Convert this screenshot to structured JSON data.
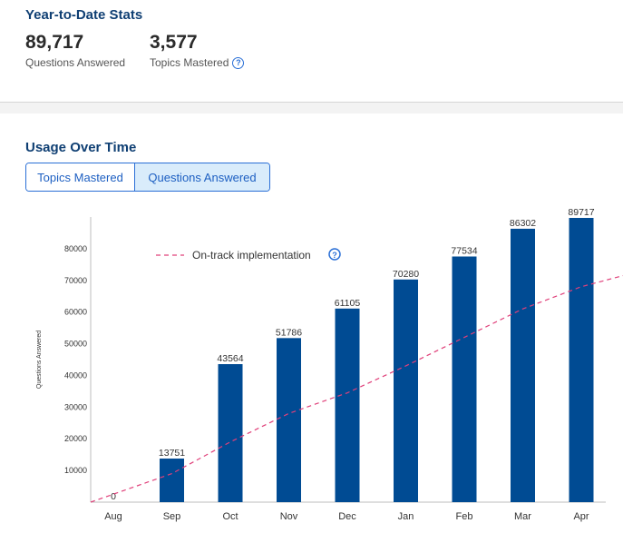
{
  "ytd": {
    "title": "Year-to-Date Stats",
    "questions_value": "89,717",
    "questions_label": "Questions Answered",
    "topics_value": "3,577",
    "topics_label": "Topics Mastered",
    "help_glyph": "?"
  },
  "usage": {
    "title": "Usage Over Time",
    "tabs": [
      {
        "label": "Topics Mastered",
        "selected": false
      },
      {
        "label": "Questions Answered",
        "selected": true
      }
    ]
  },
  "colors": {
    "bar": "#004b93",
    "trend": "#e0407a",
    "title": "#0f3f73",
    "accent": "#2a6fd6",
    "selected_tab_bg": "#d9ecfb"
  },
  "chart_data": {
    "type": "bar",
    "ylabel": "Questions Answered",
    "xlabel": "",
    "ylim": [
      0,
      90000
    ],
    "yticks": [
      10000,
      20000,
      30000,
      40000,
      50000,
      60000,
      70000,
      80000
    ],
    "categories": [
      "Aug",
      "Sep",
      "Oct",
      "Nov",
      "Dec",
      "Jan",
      "Feb",
      "Mar",
      "Apr"
    ],
    "values": [
      0,
      13751,
      43564,
      51786,
      61105,
      70280,
      77534,
      86302,
      89717
    ],
    "trend": {
      "label": "On-track implementation",
      "style": "dashed",
      "values": [
        0,
        9000,
        19000,
        28000,
        34500,
        43000,
        52000,
        61000,
        68000
      ],
      "end_value": 71500
    },
    "legend_position": "top-center",
    "grid": false
  }
}
